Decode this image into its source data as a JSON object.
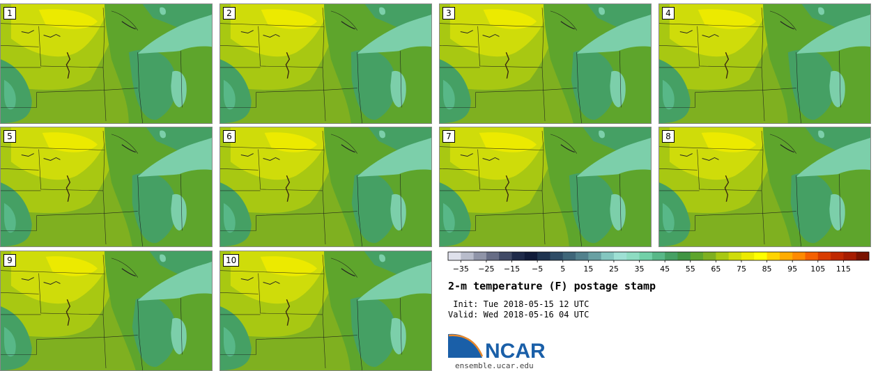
{
  "figure": {
    "title": "2-m temperature (F) postage stamp",
    "init_label": "Init:",
    "init_value": "Tue 2018-05-15 12 UTC",
    "valid_label": "Valid:",
    "valid_value": "Wed 2018-05-16 04 UTC"
  },
  "members": [
    "1",
    "2",
    "3",
    "4",
    "5",
    "6",
    "7",
    "8",
    "9",
    "10"
  ],
  "colorbar": {
    "tick_labels": [
      "−35",
      "−25",
      "−15",
      "−5",
      "5",
      "15",
      "25",
      "35",
      "45",
      "55",
      "65",
      "75",
      "85",
      "95",
      "105",
      "115"
    ],
    "colors": [
      "#dfe1ec",
      "#b8bccb",
      "#8f94a8",
      "#676d86",
      "#404a66",
      "#1e2a4a",
      "#101b3a",
      "#1e3350",
      "#2e4c66",
      "#3f6679",
      "#52818d",
      "#68a0a3",
      "#84c6c0",
      "#9ee0d4",
      "#8edcc2",
      "#72d0a8",
      "#58b888",
      "#45a064",
      "#3f9442",
      "#5ea52c",
      "#7fb020",
      "#a8c812",
      "#cfdc0a",
      "#ecea00",
      "#ffff00",
      "#ffd400",
      "#ffac00",
      "#ff8a00",
      "#f56000",
      "#d83c00",
      "#c02800",
      "#a61c00",
      "#7a1200"
    ]
  },
  "branding": {
    "logo_text": "NCAR",
    "url": "ensemble.ucar.edu",
    "colors": {
      "blue": "#1a5fa8",
      "orange": "#e8872a"
    }
  },
  "map_colors": {
    "bin_55_60": "#45a064",
    "bin_60_65": "#5ea52c",
    "bin_65_70": "#7fb020",
    "bin_70_75": "#a8c812",
    "bin_75_80": "#cfdc0a",
    "bin_80_85": "#ecea00",
    "bin_50_55": "#58b888",
    "lake": "#7ccfaa"
  }
}
